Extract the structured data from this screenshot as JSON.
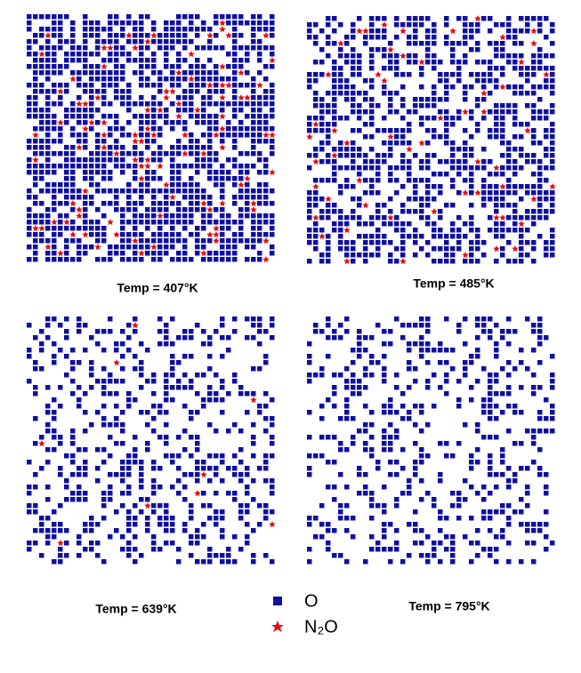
{
  "panels": [
    {
      "label": "Temp = 407°K"
    },
    {
      "label": "Temp = 485°K"
    },
    {
      "label": "Temp = 639°K"
    },
    {
      "label": "Temp = 795°K"
    }
  ],
  "legend": [
    {
      "label": "O"
    },
    {
      "label": "N₂O"
    }
  ]
}
